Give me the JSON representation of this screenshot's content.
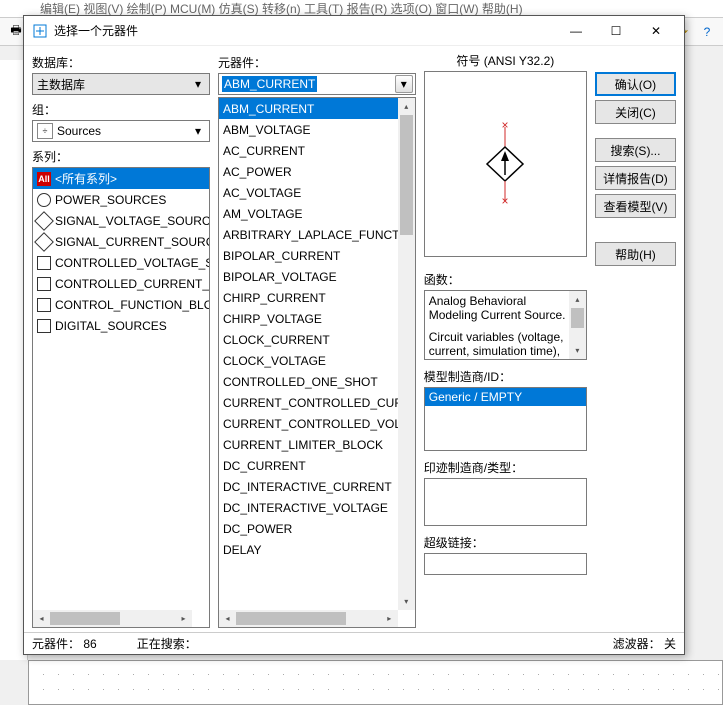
{
  "bg_menu": "编辑(E)  视图(V)  绘制(P)  MCU(M)  仿真(S)  转移(n)  工具(T)  报告(R)  选项(O)  窗口(W)  帮助(H)",
  "window": {
    "title": "选择一个元器件",
    "min": "—",
    "max": "☐",
    "close": "✕"
  },
  "labels": {
    "database": "数据库：",
    "component": "元器件：",
    "group": "组：",
    "series": "系列：",
    "symbol": "符号 (ANSI Y32.2)",
    "function": "函数：",
    "model_mfr": "模型制造商/ID：",
    "footprint": "印迹制造商/类型：",
    "hyperlink": "超级链接："
  },
  "database_combo": "主数据库",
  "group_combo": "Sources",
  "component_input": "ABM_CURRENT",
  "series": [
    {
      "icon": "all",
      "label": "<所有系列>"
    },
    {
      "icon": "circ",
      "label": "POWER_SOURCES"
    },
    {
      "icon": "diam",
      "label": "SIGNAL_VOLTAGE_SOURCES"
    },
    {
      "icon": "diam",
      "label": "SIGNAL_CURRENT_SOURCES"
    },
    {
      "icon": "sq",
      "label": "CONTROLLED_VOLTAGE_SOURCES"
    },
    {
      "icon": "sq",
      "label": "CONTROLLED_CURRENT_SOURCES"
    },
    {
      "icon": "sq",
      "label": "CONTROL_FUNCTION_BLOCKS"
    },
    {
      "icon": "sq",
      "label": "DIGITAL_SOURCES"
    }
  ],
  "components": [
    "ABM_CURRENT",
    "ABM_VOLTAGE",
    "AC_CURRENT",
    "AC_POWER",
    "AC_VOLTAGE",
    "AM_VOLTAGE",
    "ARBITRARY_LAPLACE_FUNCTION",
    "BIPOLAR_CURRENT",
    "BIPOLAR_VOLTAGE",
    "CHIRP_CURRENT",
    "CHIRP_VOLTAGE",
    "CLOCK_CURRENT",
    "CLOCK_VOLTAGE",
    "CONTROLLED_ONE_SHOT",
    "CURRENT_CONTROLLED_CURRENT",
    "CURRENT_CONTROLLED_VOLTAGE",
    "CURRENT_LIMITER_BLOCK",
    "DC_CURRENT",
    "DC_INTERACTIVE_CURRENT",
    "DC_INTERACTIVE_VOLTAGE",
    "DC_POWER",
    "DELAY"
  ],
  "component_selected": 0,
  "function_text1": "Analog Behavioral Modeling Current Source.",
  "function_text2": "Circuit variables (voltage, current, simulation time), along with various",
  "model_row": "Generic / EMPTY",
  "buttons": {
    "ok": "确认(O)",
    "close": "关闭(C)",
    "search": "搜索(S)...",
    "report": "详情报告(D)",
    "model": "查看模型(V)",
    "help": "帮助(H)"
  },
  "status": {
    "count_label": "元器件：",
    "count": "86",
    "searching": "正在搜索：",
    "filter_label": "滤波器：",
    "filter_value": "关"
  },
  "colors": {
    "select": "#0078d7",
    "red": "#d02828"
  }
}
